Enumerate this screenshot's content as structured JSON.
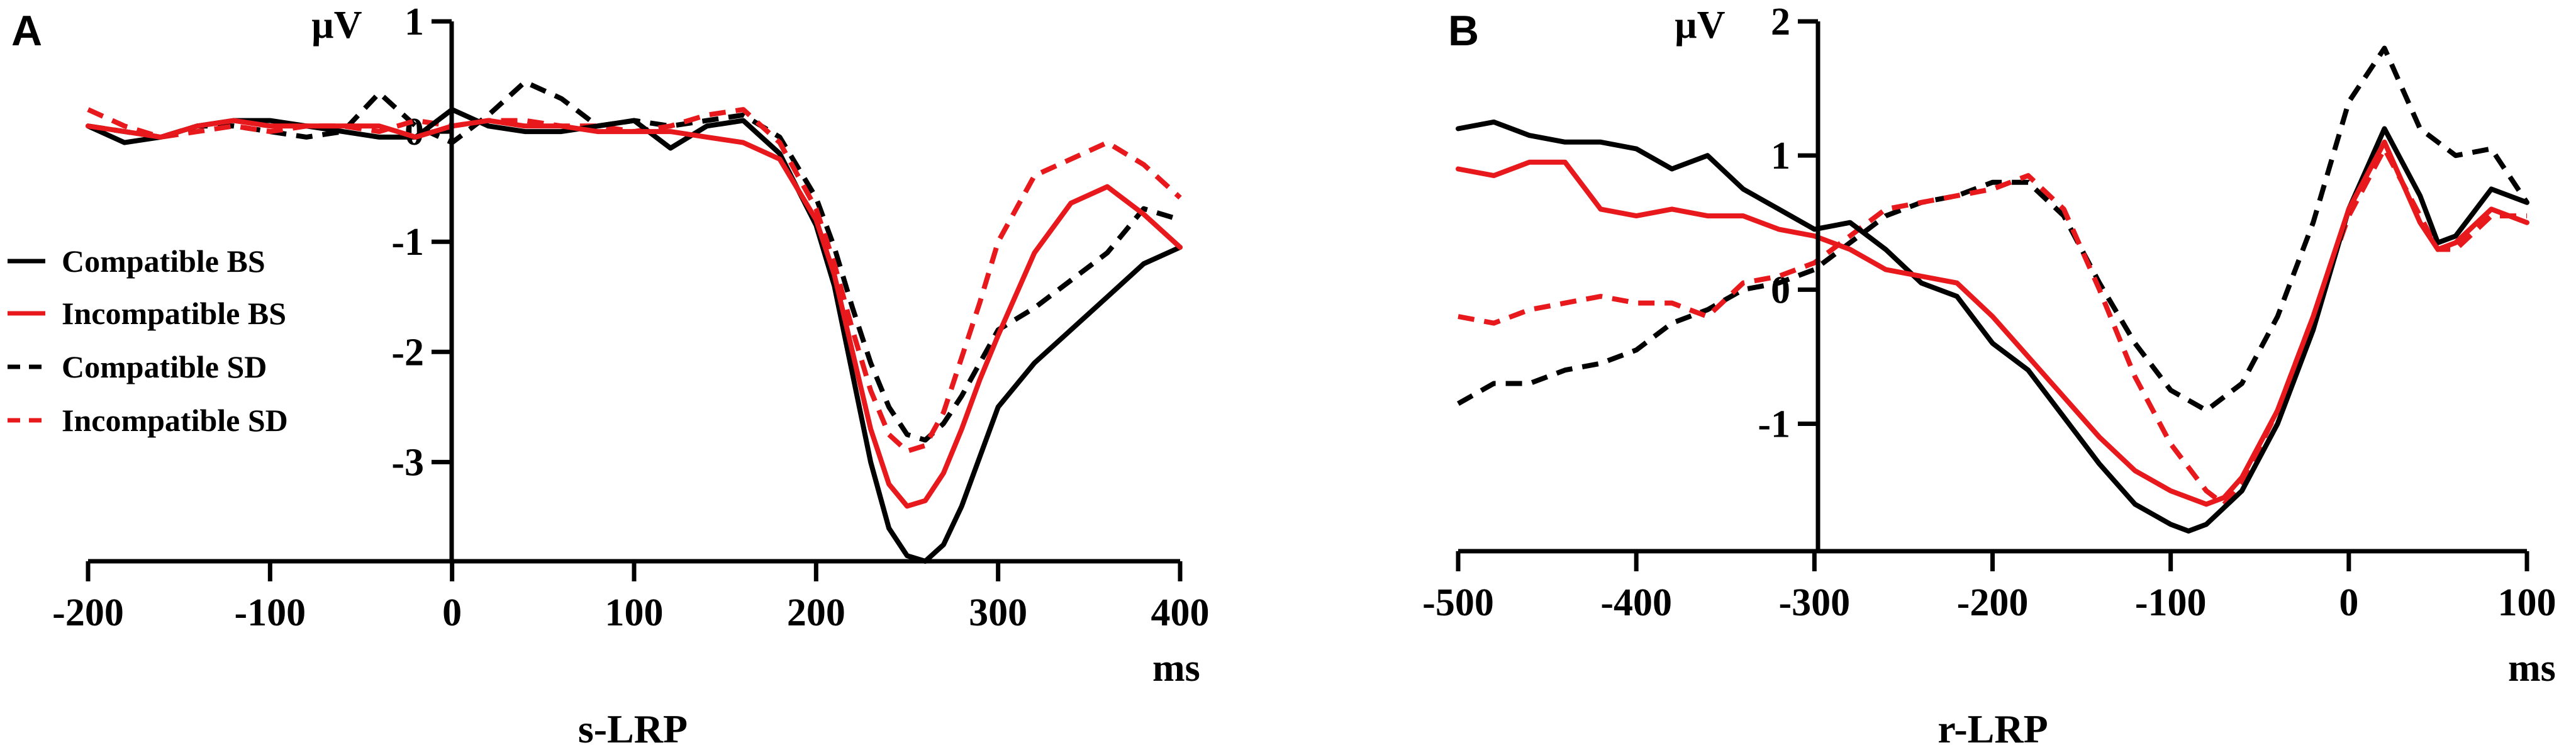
{
  "chart_data": [
    {
      "type": "line",
      "panel_label": "A",
      "title": "s-LRP",
      "xlabel": "ms",
      "ylabel": "µV",
      "xlim": [
        -200,
        400
      ],
      "ylim": [
        -3.9,
        1
      ],
      "xticks": [
        -200,
        -100,
        0,
        100,
        200,
        300,
        400
      ],
      "yticks": [
        1,
        0,
        -1,
        -2,
        -3
      ],
      "xtick_labels": [
        "-200",
        "-100",
        "0",
        "100",
        "200",
        "300",
        "400"
      ],
      "ytick_labels": [
        "1",
        "0",
        "-1",
        "-2",
        "-3"
      ],
      "legend": [
        {
          "name": "Compatible BS",
          "color": "#000000",
          "dashed": false
        },
        {
          "name": "Incompatible BS",
          "color": "#e8191c",
          "dashed": false
        },
        {
          "name": "Compatible SD",
          "color": "#000000",
          "dashed": true
        },
        {
          "name": "Incompatible SD",
          "color": "#e8191c",
          "dashed": true
        }
      ],
      "series": [
        {
          "name": "Compatible BS",
          "color": "#000000",
          "dashed": false,
          "x": [
            -200,
            -180,
            -160,
            -140,
            -120,
            -100,
            -80,
            -60,
            -40,
            -20,
            0,
            20,
            40,
            60,
            80,
            100,
            120,
            140,
            160,
            180,
            200,
            210,
            220,
            230,
            240,
            250,
            260,
            270,
            280,
            290,
            300,
            320,
            340,
            360,
            380,
            400
          ],
          "y": [
            0.05,
            -0.1,
            -0.05,
            0.05,
            0.1,
            0.1,
            0.05,
            0.0,
            -0.05,
            -0.05,
            0.2,
            0.05,
            0.0,
            0.0,
            0.05,
            0.1,
            -0.15,
            0.05,
            0.1,
            -0.2,
            -0.85,
            -1.4,
            -2.2,
            -3.0,
            -3.6,
            -3.85,
            -3.9,
            -3.75,
            -3.4,
            -2.95,
            -2.5,
            -2.1,
            -1.8,
            -1.5,
            -1.2,
            -1.05
          ]
        },
        {
          "name": "Incompatible BS",
          "color": "#e8191c",
          "dashed": false,
          "x": [
            -200,
            -180,
            -160,
            -140,
            -120,
            -100,
            -80,
            -60,
            -40,
            -20,
            0,
            20,
            40,
            60,
            80,
            100,
            120,
            140,
            160,
            180,
            200,
            210,
            220,
            230,
            240,
            250,
            260,
            270,
            280,
            290,
            300,
            320,
            340,
            360,
            380,
            400
          ],
          "y": [
            0.05,
            0.0,
            -0.05,
            0.05,
            0.1,
            0.05,
            0.05,
            0.05,
            0.05,
            -0.05,
            0.05,
            0.1,
            0.05,
            0.05,
            0.0,
            0.0,
            0.0,
            -0.05,
            -0.1,
            -0.25,
            -0.8,
            -1.3,
            -2.0,
            -2.7,
            -3.2,
            -3.4,
            -3.35,
            -3.1,
            -2.7,
            -2.25,
            -1.85,
            -1.1,
            -0.65,
            -0.5,
            -0.75,
            -1.05
          ]
        },
        {
          "name": "Compatible SD",
          "color": "#000000",
          "dashed": true,
          "x": [
            -200,
            -180,
            -160,
            -140,
            -120,
            -100,
            -80,
            -60,
            -40,
            -20,
            0,
            20,
            40,
            60,
            80,
            100,
            120,
            140,
            160,
            180,
            200,
            210,
            220,
            230,
            240,
            250,
            260,
            270,
            280,
            290,
            300,
            320,
            340,
            360,
            380,
            400
          ],
          "y": [
            0.05,
            0.0,
            -0.05,
            0.05,
            0.05,
            0.0,
            -0.05,
            0.0,
            0.35,
            0.05,
            -0.1,
            0.15,
            0.45,
            0.3,
            0.05,
            0.1,
            0.05,
            0.1,
            0.15,
            -0.05,
            -0.6,
            -1.05,
            -1.6,
            -2.1,
            -2.5,
            -2.75,
            -2.8,
            -2.65,
            -2.4,
            -2.1,
            -1.8,
            -1.6,
            -1.35,
            -1.1,
            -0.7,
            -0.8
          ]
        },
        {
          "name": "Incompatible SD",
          "color": "#e8191c",
          "dashed": true,
          "x": [
            -200,
            -180,
            -160,
            -140,
            -120,
            -100,
            -80,
            -60,
            -40,
            -20,
            0,
            20,
            40,
            60,
            80,
            100,
            120,
            140,
            160,
            180,
            200,
            210,
            220,
            230,
            240,
            250,
            260,
            270,
            280,
            290,
            300,
            320,
            340,
            360,
            380,
            400
          ],
          "y": [
            0.2,
            0.05,
            -0.05,
            0.0,
            0.05,
            0.0,
            0.05,
            0.05,
            0.0,
            0.1,
            0.05,
            0.1,
            0.1,
            0.05,
            0.05,
            0.0,
            0.05,
            0.15,
            0.2,
            -0.1,
            -0.7,
            -1.2,
            -1.8,
            -2.35,
            -2.75,
            -2.9,
            -2.85,
            -2.55,
            -2.05,
            -1.55,
            -1.0,
            -0.4,
            -0.25,
            -0.1,
            -0.3,
            -0.6
          ]
        }
      ]
    },
    {
      "type": "line",
      "panel_label": "B",
      "title": "r-LRP",
      "xlabel": "ms",
      "ylabel": "µV",
      "xlim": [
        -500,
        100
      ],
      "ylim": [
        -1.95,
        2
      ],
      "xticks": [
        -500,
        -400,
        -300,
        -200,
        -100,
        0,
        100
      ],
      "yticks": [
        2,
        1,
        0,
        -1
      ],
      "xtick_labels": [
        "-500",
        "-400",
        "-300",
        "-200",
        "-100",
        "0",
        "100"
      ],
      "ytick_labels": [
        "2",
        "1",
        "0",
        "-1"
      ],
      "series": [
        {
          "name": "Compatible BS",
          "color": "#000000",
          "dashed": false,
          "x": [
            -500,
            -480,
            -460,
            -440,
            -420,
            -400,
            -380,
            -360,
            -340,
            -320,
            -300,
            -280,
            -260,
            -240,
            -220,
            -200,
            -180,
            -160,
            -140,
            -120,
            -100,
            -90,
            -80,
            -60,
            -40,
            -20,
            0,
            20,
            40,
            50,
            60,
            80,
            100
          ],
          "y": [
            1.2,
            1.25,
            1.15,
            1.1,
            1.1,
            1.05,
            0.9,
            1.0,
            0.75,
            0.6,
            0.45,
            0.5,
            0.3,
            0.05,
            -0.05,
            -0.4,
            -0.6,
            -0.95,
            -1.3,
            -1.6,
            -1.75,
            -1.8,
            -1.75,
            -1.5,
            -1.0,
            -0.3,
            0.6,
            1.2,
            0.7,
            0.35,
            0.4,
            0.75,
            0.65
          ]
        },
        {
          "name": "Incompatible BS",
          "color": "#e8191c",
          "dashed": false,
          "x": [
            -500,
            -480,
            -460,
            -440,
            -420,
            -400,
            -380,
            -360,
            -340,
            -320,
            -300,
            -280,
            -260,
            -240,
            -220,
            -200,
            -180,
            -160,
            -140,
            -120,
            -100,
            -80,
            -70,
            -60,
            -40,
            -20,
            0,
            20,
            40,
            50,
            60,
            80,
            100
          ],
          "y": [
            0.9,
            0.85,
            0.95,
            0.95,
            0.6,
            0.55,
            0.6,
            0.55,
            0.55,
            0.45,
            0.4,
            0.3,
            0.15,
            0.1,
            0.05,
            -0.2,
            -0.5,
            -0.8,
            -1.1,
            -1.35,
            -1.5,
            -1.6,
            -1.55,
            -1.4,
            -0.9,
            -0.2,
            0.6,
            1.1,
            0.5,
            0.3,
            0.35,
            0.6,
            0.5
          ]
        },
        {
          "name": "Compatible SD",
          "color": "#000000",
          "dashed": true,
          "x": [
            -500,
            -480,
            -460,
            -440,
            -420,
            -400,
            -380,
            -360,
            -340,
            -320,
            -300,
            -280,
            -260,
            -240,
            -220,
            -200,
            -180,
            -160,
            -140,
            -120,
            -100,
            -80,
            -60,
            -40,
            -20,
            0,
            20,
            40,
            60,
            80,
            100
          ],
          "y": [
            -0.85,
            -0.7,
            -0.7,
            -0.6,
            -0.55,
            -0.45,
            -0.25,
            -0.15,
            0.0,
            0.05,
            0.15,
            0.35,
            0.55,
            0.65,
            0.7,
            0.8,
            0.8,
            0.55,
            0.05,
            -0.4,
            -0.75,
            -0.9,
            -0.7,
            -0.2,
            0.5,
            1.4,
            1.8,
            1.2,
            1.0,
            1.05,
            0.65
          ]
        },
        {
          "name": "Incompatible SD",
          "color": "#e8191c",
          "dashed": true,
          "x": [
            -500,
            -480,
            -460,
            -440,
            -420,
            -400,
            -380,
            -360,
            -340,
            -320,
            -300,
            -280,
            -260,
            -240,
            -220,
            -200,
            -180,
            -160,
            -140,
            -120,
            -100,
            -80,
            -70,
            -60,
            -40,
            -20,
            0,
            20,
            40,
            50,
            60,
            80,
            100
          ],
          "y": [
            -0.2,
            -0.25,
            -0.15,
            -0.1,
            -0.05,
            -0.1,
            -0.1,
            -0.2,
            0.05,
            0.1,
            0.2,
            0.4,
            0.6,
            0.65,
            0.7,
            0.75,
            0.85,
            0.6,
            0.0,
            -0.65,
            -1.15,
            -1.5,
            -1.6,
            -1.45,
            -0.9,
            -0.2,
            0.55,
            1.05,
            0.55,
            0.3,
            0.3,
            0.55,
            0.55
          ]
        }
      ]
    }
  ]
}
